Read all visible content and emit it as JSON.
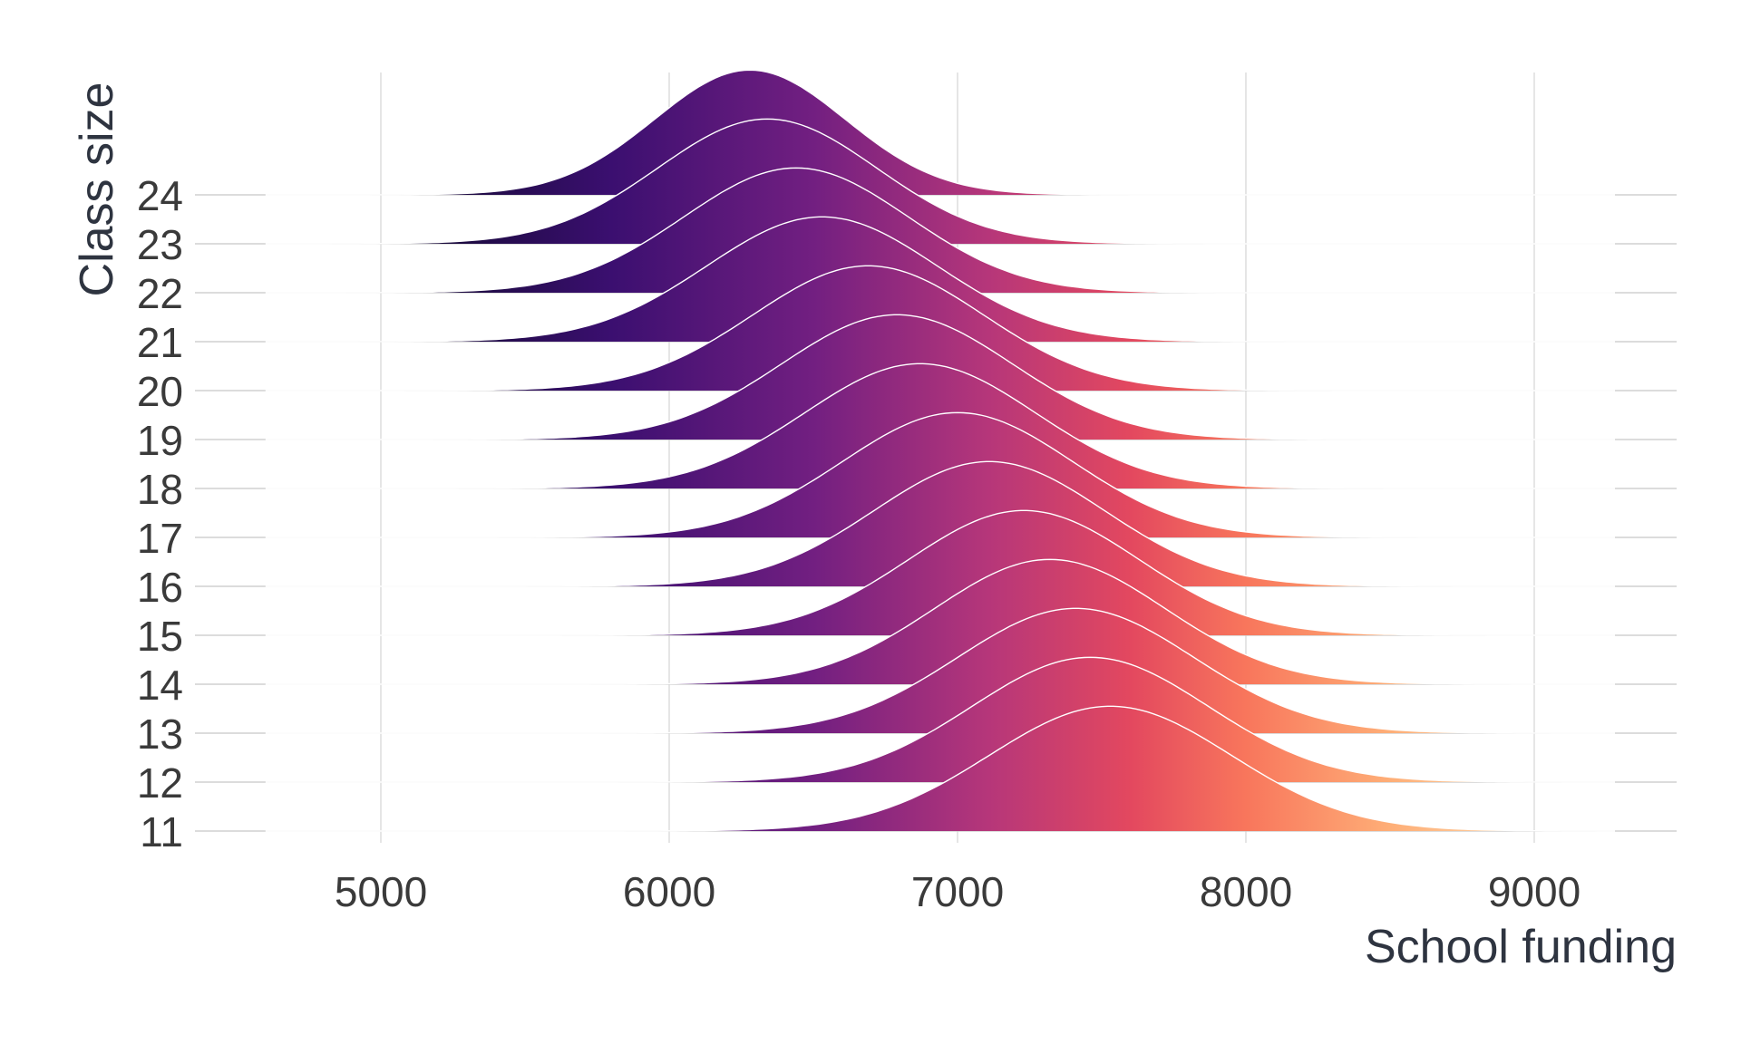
{
  "chart_data": {
    "type": "area",
    "subtype": "ridgeline",
    "title": "",
    "xlabel": "School funding",
    "ylabel": "Class size",
    "xlim": [
      4600,
      9280
    ],
    "x_ticks": [
      5000,
      6000,
      7000,
      8000,
      9000
    ],
    "x_tick_labels": [
      "5000",
      "6000",
      "7000",
      "8000",
      "9000"
    ],
    "grid": true,
    "fill": "horizontal gradient along x (magma palette)",
    "gradient_colors": [
      "#0d0829",
      "#3b0f70",
      "#721f81",
      "#b5367a",
      "#e3485f",
      "#f8765c",
      "#feae77",
      "#fde9c0"
    ],
    "gradient_stops": [
      5000,
      5800,
      6500,
      7100,
      7600,
      8000,
      8500,
      9200
    ],
    "outline_color": "#ffffff",
    "series": [
      {
        "name": "24",
        "mode": 6280,
        "sd": 330
      },
      {
        "name": "23",
        "mode": 6340,
        "sd": 380
      },
      {
        "name": "22",
        "mode": 6440,
        "sd": 390
      },
      {
        "name": "21",
        "mode": 6530,
        "sd": 400
      },
      {
        "name": "20",
        "mode": 6690,
        "sd": 400
      },
      {
        "name": "19",
        "mode": 6790,
        "sd": 400
      },
      {
        "name": "18",
        "mode": 6870,
        "sd": 400
      },
      {
        "name": "17",
        "mode": 7000,
        "sd": 400
      },
      {
        "name": "16",
        "mode": 7110,
        "sd": 400
      },
      {
        "name": "15",
        "mode": 7230,
        "sd": 400
      },
      {
        "name": "14",
        "mode": 7320,
        "sd": 400
      },
      {
        "name": "13",
        "mode": 7410,
        "sd": 410
      },
      {
        "name": "12",
        "mode": 7460,
        "sd": 410
      },
      {
        "name": "11",
        "mode": 7530,
        "sd": 420
      }
    ]
  }
}
